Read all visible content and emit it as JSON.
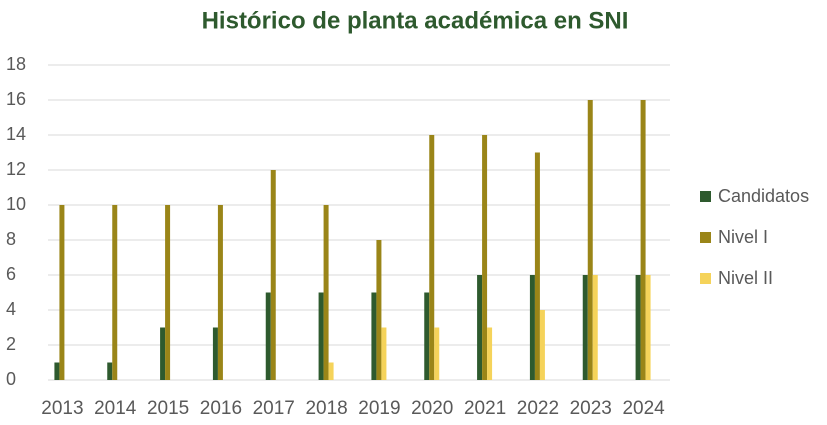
{
  "chart_data": {
    "type": "bar",
    "title": "Histórico de planta académica en SNI",
    "categories": [
      "2013",
      "2014",
      "2015",
      "2016",
      "2017",
      "2018",
      "2019",
      "2020",
      "2021",
      "2022",
      "2023",
      "2024"
    ],
    "series": [
      {
        "name": "Candidatos",
        "color": "#2e5a2e",
        "values": [
          1,
          1,
          3,
          3,
          5,
          5,
          5,
          5,
          6,
          6,
          6,
          6
        ]
      },
      {
        "name": "Nivel I",
        "color": "#9a8518",
        "values": [
          10,
          10,
          10,
          10,
          12,
          10,
          8,
          14,
          14,
          13,
          16,
          16
        ]
      },
      {
        "name": "Nivel II",
        "color": "#f5d35a",
        "values": [
          0,
          0,
          0,
          0,
          0,
          1,
          3,
          3,
          3,
          4,
          6,
          6
        ]
      }
    ],
    "ylim": [
      0,
      18
    ],
    "yticks": [
      0,
      2,
      4,
      6,
      8,
      10,
      12,
      14,
      16,
      18
    ],
    "grid": true,
    "legend": "right"
  }
}
